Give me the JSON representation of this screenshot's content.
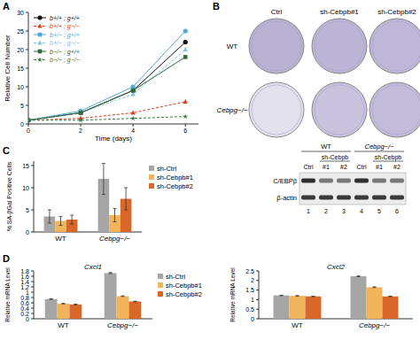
{
  "panel_labels": [
    "A",
    "B",
    "C",
    "D"
  ],
  "chart_data": [
    {
      "type": "line",
      "x_label": "Time (days)",
      "y_label": "Relative Cell Number",
      "x": [
        0,
        2,
        4,
        6
      ],
      "xlim": [
        0,
        6.5
      ],
      "xticks": [
        0,
        2,
        4,
        6
      ],
      "ylim": [
        0,
        30
      ],
      "yticks": [
        0,
        5,
        10,
        15,
        20,
        25,
        30
      ],
      "legend": "upper left",
      "series": [
        {
          "name": "b+/+ ; g+/+",
          "color": "#111111",
          "marker": "circle",
          "line_style": "solid",
          "values": [
            1,
            3,
            9,
            22
          ]
        },
        {
          "name": "b+/+ ; g−/−",
          "color": "#e0401a",
          "marker": "triangle",
          "line_style": "dashed",
          "values": [
            1,
            1.5,
            3,
            6
          ]
        },
        {
          "name": "b+/− ; g+/+",
          "color": "#4fa8d8",
          "marker": "circle",
          "line_style": "solid",
          "values": [
            1,
            3.5,
            10,
            25
          ]
        },
        {
          "name": "b+/− ; g−/−",
          "color": "#7ec3e6",
          "marker": "triangle",
          "line_style": "dashed",
          "values": [
            1,
            3,
            8,
            20
          ]
        },
        {
          "name": "b−/− ; g+/+",
          "color": "#2e6b3a",
          "marker": "square",
          "line_style": "solid",
          "values": [
            1,
            3,
            9,
            18
          ]
        },
        {
          "name": "b−/− ; g−/−",
          "color": "#3f7a4a",
          "marker": "star",
          "line_style": "dashed",
          "values": [
            1,
            1,
            1.5,
            2
          ]
        }
      ]
    },
    {
      "type": "bar",
      "y_label": "% SA-βGal Positive Cells",
      "categories": [
        "WT",
        "Cebpg−/−"
      ],
      "ylim": [
        0,
        16
      ],
      "yticks": [
        0,
        5,
        10,
        15
      ],
      "legend": "right",
      "series": [
        {
          "name": "sh-Ctrl",
          "color": "#a6a6a6",
          "values": [
            3.5,
            12
          ],
          "errors": [
            1.5,
            3.5
          ]
        },
        {
          "name": "sh-Cebpb#1",
          "color": "#f2b45a",
          "values": [
            2.5,
            3.8
          ],
          "errors": [
            1,
            1.5
          ]
        },
        {
          "name": "sh-Cebpb#2",
          "color": "#d9672a",
          "values": [
            2.8,
            7.5
          ],
          "errors": [
            1,
            2.5
          ]
        }
      ]
    },
    {
      "type": "bar",
      "title": "Cxcl1",
      "y_label": "Relative mRNA Level",
      "categories": [
        "WT",
        "Cebpg−/−"
      ],
      "ylim": [
        0,
        1.8
      ],
      "yticks": [
        0,
        0.2,
        0.4,
        0.6,
        0.8,
        1,
        1.2,
        1.4,
        1.6,
        1.8
      ],
      "legend": "right",
      "series": [
        {
          "name": "sh-Ctrl",
          "color": "#a6a6a6",
          "values": [
            0.74,
            1.72
          ],
          "errors": [
            0.01,
            0.02
          ]
        },
        {
          "name": "sh-Cebpb#1",
          "color": "#f2b45a",
          "values": [
            0.57,
            0.85
          ],
          "errors": [
            0.01,
            0.01
          ]
        },
        {
          "name": "sh-Cebpb#2",
          "color": "#d9672a",
          "values": [
            0.54,
            0.65
          ],
          "errors": [
            0.01,
            0.01
          ]
        }
      ]
    },
    {
      "type": "bar",
      "title": "Cxcl2",
      "y_label": "Relative mRNA Level",
      "categories": [
        "WT",
        "Cebpg−/−"
      ],
      "ylim": [
        0,
        2.5
      ],
      "yticks": [
        0,
        0.5,
        1,
        1.5,
        2,
        2.5
      ],
      "series": [
        {
          "color": "#a6a6a6",
          "values": [
            1.22,
            2.22
          ],
          "errors": [
            0.01,
            0.02
          ]
        },
        {
          "color": "#f2b45a",
          "values": [
            1.2,
            1.65
          ],
          "errors": [
            0.01,
            0.02
          ]
        },
        {
          "color": "#d9672a",
          "values": [
            1.17,
            1.17
          ],
          "errors": [
            0.01,
            0.01
          ]
        }
      ]
    }
  ],
  "plates": {
    "columns": [
      "Ctrl",
      "sh-Cebpb#1",
      "sh-Cebpb#2"
    ],
    "rows": [
      "WT",
      "Cebpg−/−"
    ]
  },
  "blot": {
    "groups": [
      "WT",
      "Cebpg−/−"
    ],
    "treatment": "sh-Cebpb",
    "lane_labels": [
      "Ctrl",
      "#1",
      "#2",
      "Ctrl",
      "#1",
      "#2"
    ],
    "lane_numbers": [
      1,
      2,
      3,
      4,
      5,
      6
    ],
    "bands": [
      "C/EBPβ",
      "β-actin"
    ]
  }
}
